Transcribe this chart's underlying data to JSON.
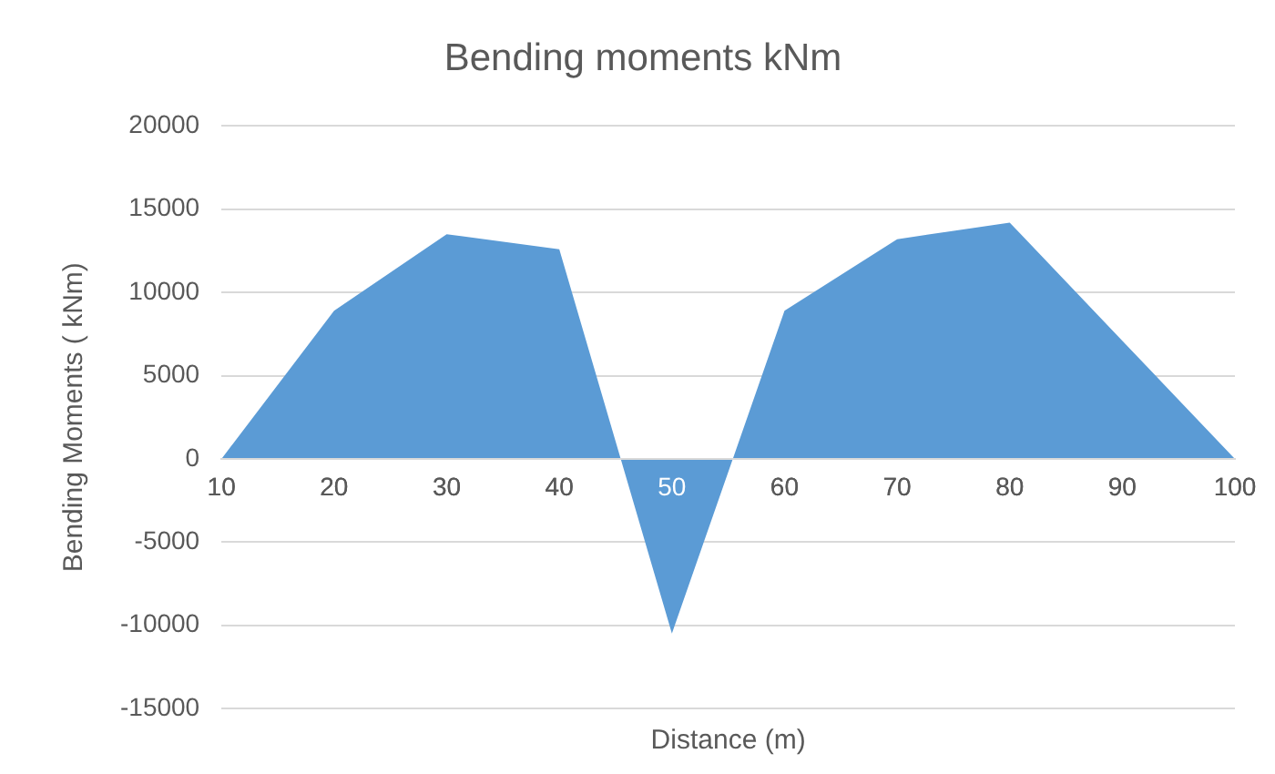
{
  "chart_data": {
    "type": "area",
    "title": "Bending moments kNm",
    "xlabel": "Distance (m)",
    "ylabel": "Bending Moments ( kNm)",
    "categories": [
      "10",
      "20",
      "30",
      "40",
      "50",
      "60",
      "70",
      "80",
      "90",
      "100"
    ],
    "series": [
      {
        "color": "#5b9bd5",
        "values": [
          0,
          8900,
          13500,
          12600,
          -10500,
          8900,
          13200,
          14200,
          7100,
          0
        ]
      }
    ],
    "ylim": [
      -15000,
      20000
    ],
    "yticks": [
      -15000,
      -10000,
      -5000,
      0,
      5000,
      10000,
      15000,
      20000
    ],
    "grid": "y",
    "legend": false
  }
}
